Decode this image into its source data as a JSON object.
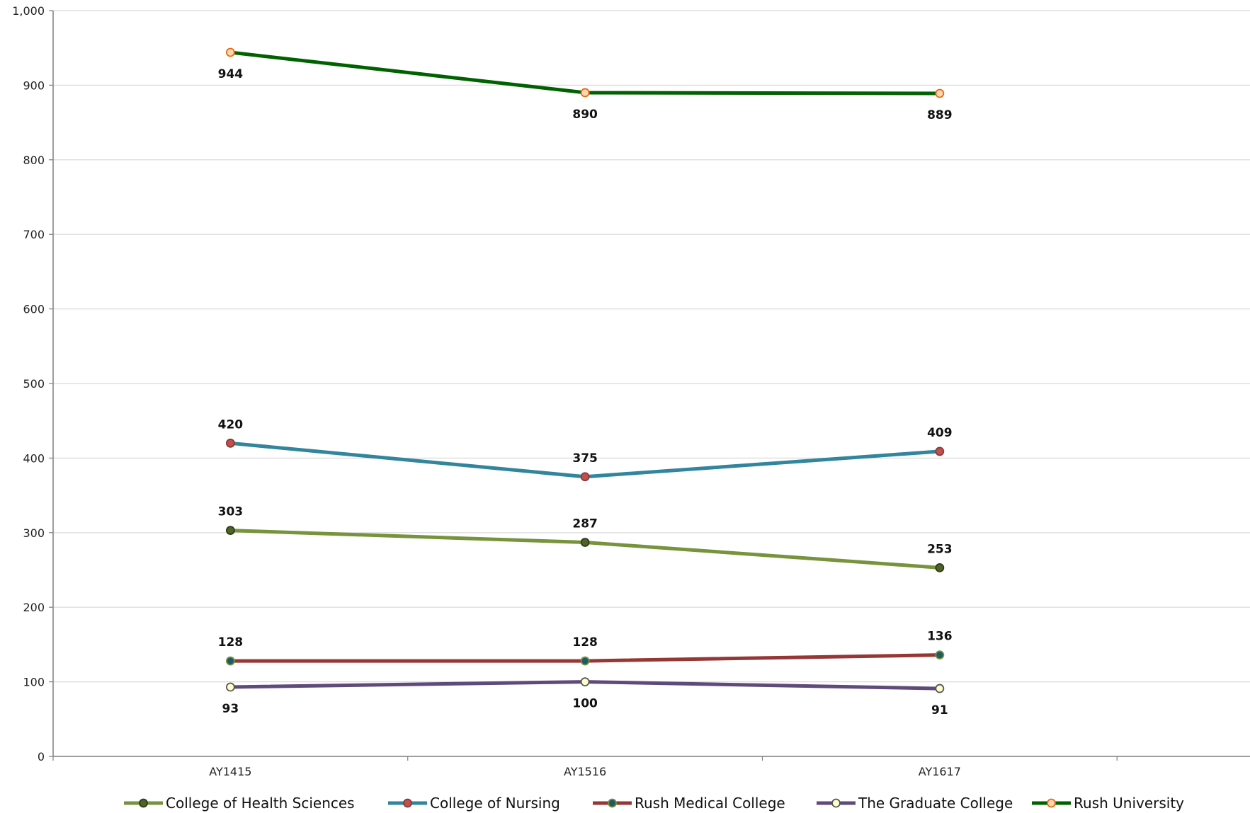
{
  "chart_data": {
    "type": "line",
    "title": "",
    "xlabel": "",
    "ylabel": "",
    "ylim": [
      0,
      1000
    ],
    "yticks": [
      0,
      100,
      200,
      300,
      400,
      500,
      600,
      700,
      800,
      900,
      1000
    ],
    "ytick_labels": [
      "0",
      "100",
      "200",
      "300",
      "400",
      "500",
      "600",
      "700",
      "800",
      "900",
      "1,000"
    ],
    "categories": [
      "AY1415",
      "AY1516",
      "AY1617"
    ],
    "grid": true,
    "legend_position": "bottom",
    "series": [
      {
        "name": "College of Health Sciences",
        "values": [
          303,
          287,
          253
        ],
        "line_color": "#77933c",
        "marker_color": "#4f6228",
        "marker_stroke": "#2e3a18",
        "label_position": "above"
      },
      {
        "name": "College of Nursing",
        "values": [
          420,
          375,
          409
        ],
        "line_color": "#31859c",
        "marker_color": "#c0504d",
        "marker_stroke": "#8c3836",
        "label_position": "above"
      },
      {
        "name": "Rush Medical College",
        "values": [
          128,
          128,
          136
        ],
        "line_color": "#953735",
        "marker_color": "#1f5a6a",
        "marker_stroke": "#77933c",
        "label_position": "above"
      },
      {
        "name": "The Graduate College",
        "values": [
          93,
          100,
          91
        ],
        "line_color": "#604a7b",
        "marker_color": "#ffffcc",
        "marker_stroke": "#555555",
        "label_position": "below"
      },
      {
        "name": "Rush University",
        "values": [
          944,
          890,
          889
        ],
        "line_color": "#006100",
        "marker_color": "#fcd5b5",
        "marker_stroke": "#e46c0a",
        "label_position": "below"
      }
    ]
  }
}
